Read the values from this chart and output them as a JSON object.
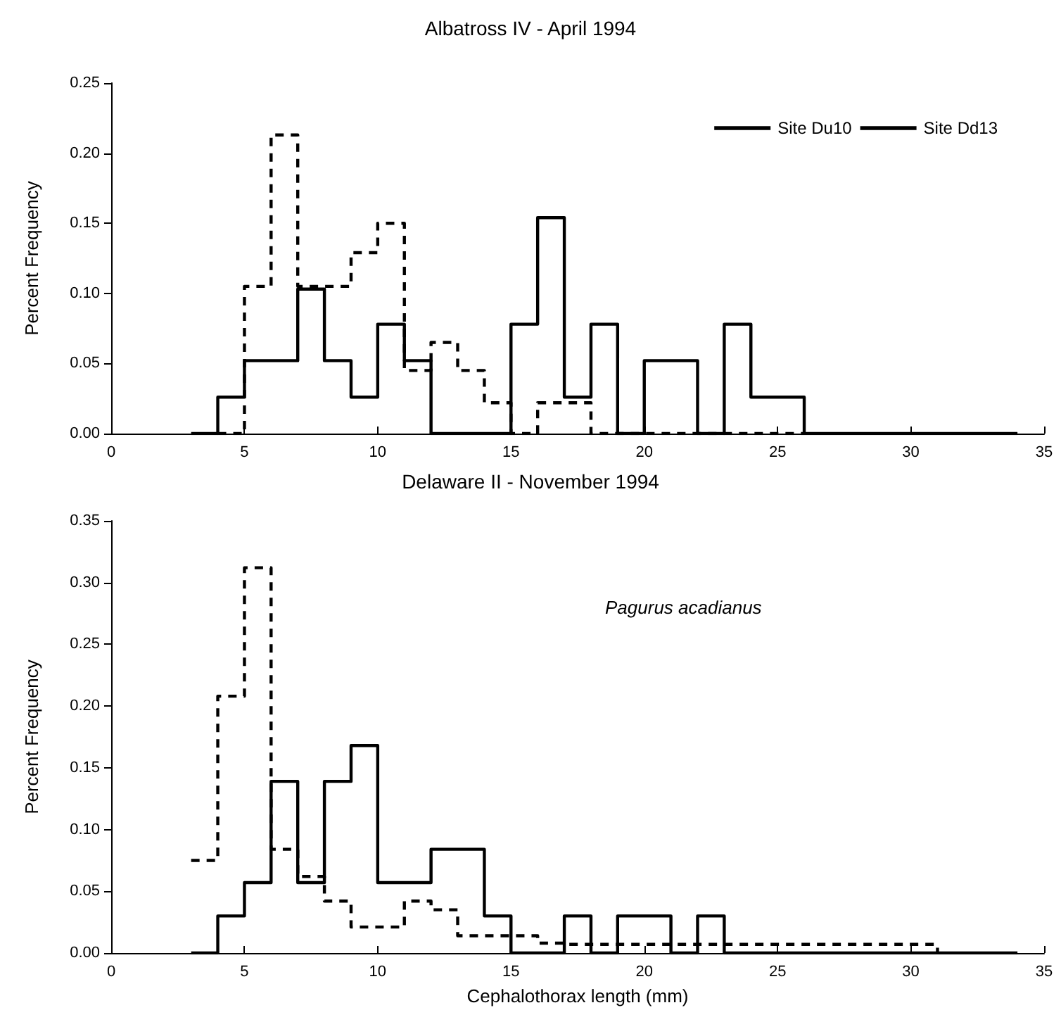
{
  "chart_data": [
    {
      "type": "step",
      "title": "Albatross IV - April 1994",
      "ylabel": "Percent Frequency",
      "xlim": [
        0,
        35
      ],
      "xticks": [
        0,
        5,
        10,
        15,
        20,
        25,
        30,
        35
      ],
      "ylim": [
        0,
        0.25
      ],
      "yticks": [
        {
          "value": 0,
          "label": "0.00"
        },
        {
          "value": 0.05,
          "label": "0.05"
        },
        {
          "value": 0.1,
          "label": "0.10"
        },
        {
          "value": 0.15,
          "label": "0.15"
        },
        {
          "value": 0.2,
          "label": "0.20"
        },
        {
          "value": 0.25,
          "label": "0.25"
        }
      ],
      "grid": false,
      "legend": "top right",
      "marker": "none",
      "series": [
        {
          "name": "Site Du10",
          "color": "#000000",
          "line_style": "dashed",
          "x": [
            4,
            5,
            6,
            7,
            8,
            9,
            10,
            11,
            12,
            13,
            14,
            15,
            16,
            17,
            18,
            26
          ],
          "values": [
            0,
            0.105,
            0.213,
            0.105,
            0.105,
            0.129,
            0.15,
            0.045,
            0.065,
            0.045,
            0.022,
            0,
            0.022,
            0.022,
            0,
            0
          ]
        },
        {
          "name": "Site Dd13",
          "color": "#000000",
          "line_style": "solid",
          "x": [
            3,
            4,
            5,
            6,
            7,
            8,
            9,
            10,
            11,
            12,
            13,
            14,
            15,
            16,
            17,
            18,
            19,
            20,
            21,
            22,
            23,
            24,
            25,
            26,
            34
          ],
          "values": [
            0,
            0.026,
            0.052,
            0.052,
            0.103,
            0.052,
            0.026,
            0.078,
            0.052,
            0,
            0,
            0,
            0.078,
            0.154,
            0.026,
            0.078,
            0,
            0.052,
            0.052,
            0,
            0.078,
            0.026,
            0.026,
            0,
            0
          ]
        }
      ]
    },
    {
      "type": "step",
      "title": "Delaware II - November 1994",
      "xlabel": "Cephalothorax length (mm)",
      "ylabel": "Percent Frequency",
      "annotations": [
        "Pagurus acadianus"
      ],
      "xlim": [
        0,
        35
      ],
      "xticks": [
        0,
        5,
        10,
        15,
        20,
        25,
        30,
        35
      ],
      "ylim": [
        0,
        0.35
      ],
      "yticks": [
        {
          "value": 0,
          "label": "0.00"
        },
        {
          "value": 0.05,
          "label": "0.05"
        },
        {
          "value": 0.1,
          "label": "0.10"
        },
        {
          "value": 0.15,
          "label": "0.15"
        },
        {
          "value": 0.2,
          "label": "0.20"
        },
        {
          "value": 0.25,
          "label": "0.25"
        },
        {
          "value": 0.3,
          "label": "0.30"
        },
        {
          "value": 0.35,
          "label": "0.35"
        }
      ],
      "grid": false,
      "marker": "none",
      "series": [
        {
          "color": "#000000",
          "line_style": "dashed",
          "x": [
            3,
            4,
            5,
            6,
            7,
            8,
            9,
            10,
            11,
            12,
            13,
            14,
            15,
            16,
            17,
            31
          ],
          "values": [
            0.075,
            0.208,
            0.312,
            0.084,
            0.062,
            0.042,
            0.021,
            0.021,
            0.042,
            0.035,
            0.014,
            0.014,
            0.014,
            0.008,
            0.007,
            0
          ]
        },
        {
          "color": "#000000",
          "line_style": "solid",
          "x": [
            3,
            4,
            5,
            6,
            7,
            8,
            9,
            10,
            11,
            12,
            13,
            14,
            15,
            16,
            17,
            18,
            19,
            20,
            21,
            22,
            23,
            34
          ],
          "values": [
            0,
            0.03,
            0.057,
            0.139,
            0.057,
            0.139,
            0.168,
            0.057,
            0.057,
            0.084,
            0.084,
            0.03,
            0,
            0,
            0.03,
            0,
            0.03,
            0.03,
            0,
            0.03,
            0,
            0
          ]
        }
      ]
    }
  ]
}
